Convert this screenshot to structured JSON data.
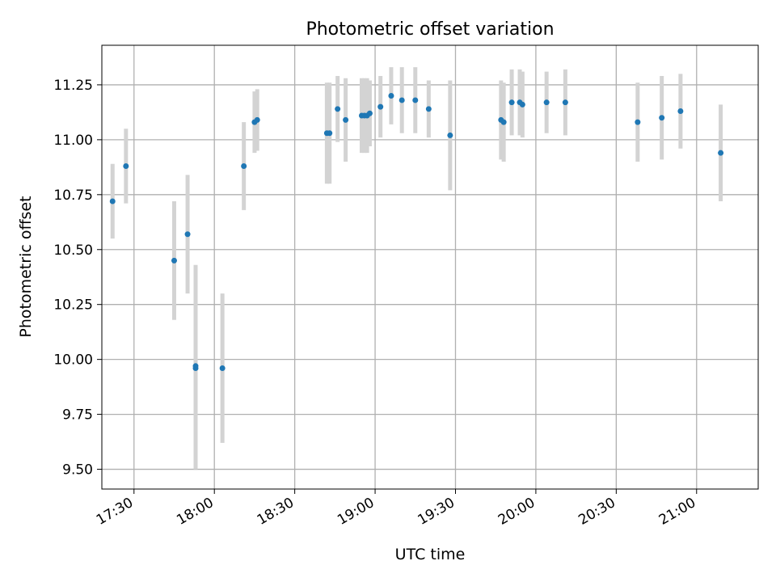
{
  "chart_data": {
    "type": "scatter",
    "title": "Photometric offset variation",
    "xlabel": "UTC time",
    "ylabel": "Photometric offset",
    "xlim": [
      "17:18",
      "21:23"
    ],
    "ylim": [
      9.41,
      11.43
    ],
    "grid": true,
    "legend": "none",
    "xticks": [
      "17:30",
      "18:00",
      "18:30",
      "19:00",
      "19:30",
      "20:00",
      "20:30",
      "21:00"
    ],
    "yticks": [
      "9.50",
      "9.75",
      "10.00",
      "10.25",
      "10.50",
      "10.75",
      "11.00",
      "11.25"
    ],
    "colors": {
      "point": "#1f77b4",
      "errorbar": "#d3d3d3",
      "grid": "#b0b0b0"
    },
    "series": [
      {
        "points": [
          {
            "x": "17:22",
            "y": 10.72,
            "yerr": 0.17
          },
          {
            "x": "17:27",
            "y": 10.88,
            "yerr": 0.17
          },
          {
            "x": "17:45",
            "y": 10.45,
            "yerr": 0.27
          },
          {
            "x": "17:50",
            "y": 10.57,
            "yerr": 0.27
          },
          {
            "x": "17:53",
            "y": 9.96,
            "yerr": 0.46
          },
          {
            "x": "17:53",
            "y": 9.97,
            "yerr": 0.46
          },
          {
            "x": "18:03",
            "y": 9.96,
            "yerr": 0.34
          },
          {
            "x": "18:11",
            "y": 10.88,
            "yerr": 0.2
          },
          {
            "x": "18:15",
            "y": 11.08,
            "yerr": 0.14
          },
          {
            "x": "18:16",
            "y": 11.09,
            "yerr": 0.14
          },
          {
            "x": "18:42",
            "y": 11.03,
            "yerr": 0.23
          },
          {
            "x": "18:43",
            "y": 11.03,
            "yerr": 0.23
          },
          {
            "x": "18:46",
            "y": 11.14,
            "yerr": 0.15
          },
          {
            "x": "18:49",
            "y": 11.09,
            "yerr": 0.19
          },
          {
            "x": "18:55",
            "y": 11.11,
            "yerr": 0.17
          },
          {
            "x": "18:56",
            "y": 11.11,
            "yerr": 0.17
          },
          {
            "x": "18:57",
            "y": 11.11,
            "yerr": 0.17
          },
          {
            "x": "18:58",
            "y": 11.12,
            "yerr": 0.15
          },
          {
            "x": "19:02",
            "y": 11.15,
            "yerr": 0.14
          },
          {
            "x": "19:06",
            "y": 11.2,
            "yerr": 0.13
          },
          {
            "x": "19:10",
            "y": 11.18,
            "yerr": 0.15
          },
          {
            "x": "19:15",
            "y": 11.18,
            "yerr": 0.15
          },
          {
            "x": "19:20",
            "y": 11.14,
            "yerr": 0.13
          },
          {
            "x": "19:28",
            "y": 11.02,
            "yerr": 0.25
          },
          {
            "x": "19:47",
            "y": 11.09,
            "yerr": 0.18
          },
          {
            "x": "19:48",
            "y": 11.08,
            "yerr": 0.18
          },
          {
            "x": "19:51",
            "y": 11.17,
            "yerr": 0.15
          },
          {
            "x": "19:54",
            "y": 11.17,
            "yerr": 0.15
          },
          {
            "x": "19:55",
            "y": 11.16,
            "yerr": 0.15
          },
          {
            "x": "20:04",
            "y": 11.17,
            "yerr": 0.14
          },
          {
            "x": "20:11",
            "y": 11.17,
            "yerr": 0.15
          },
          {
            "x": "20:38",
            "y": 11.08,
            "yerr": 0.18
          },
          {
            "x": "20:47",
            "y": 11.1,
            "yerr": 0.19
          },
          {
            "x": "20:54",
            "y": 11.13,
            "yerr": 0.17
          },
          {
            "x": "21:09",
            "y": 10.94,
            "yerr": 0.22
          }
        ]
      }
    ]
  }
}
